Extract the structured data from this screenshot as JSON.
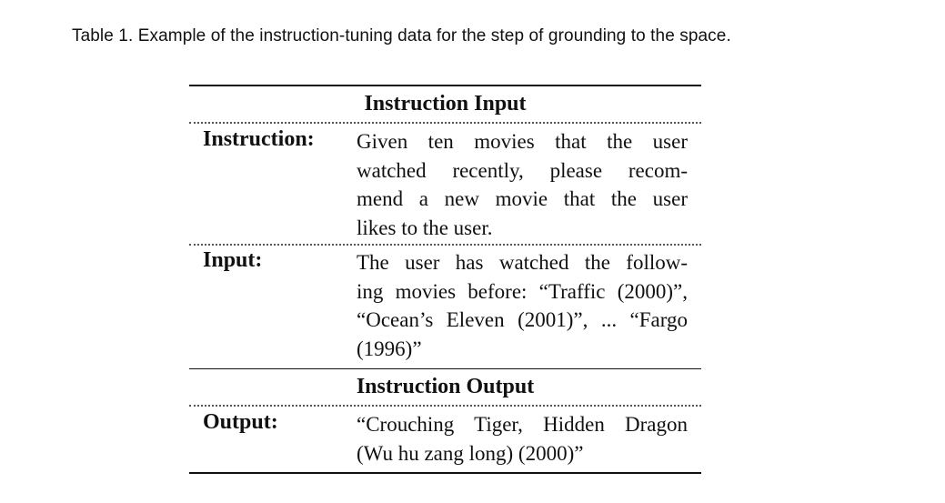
{
  "caption": "Table 1. Example of the instruction-tuning data for the step of grounding to the space.",
  "sections": {
    "input_header": "Instruction Input",
    "output_header": "Instruction Output"
  },
  "rows": {
    "instruction": {
      "label": "Instruction:",
      "lines": [
        "Given ten movies that the user",
        "watched recently, please recom-",
        "mend a new movie that the user",
        "likes to the user."
      ]
    },
    "input": {
      "label": "Input:",
      "lines": [
        "The user has watched the follow-",
        "ing movies before: “Traffic (2000)”,",
        "“Ocean’s Eleven (2001)”, ... “Fargo",
        "(1996)”"
      ]
    },
    "output": {
      "label": "Output:",
      "lines": [
        "“Crouching Tiger, Hidden Dragon",
        "(Wu hu zang long) (2000)”"
      ]
    }
  }
}
